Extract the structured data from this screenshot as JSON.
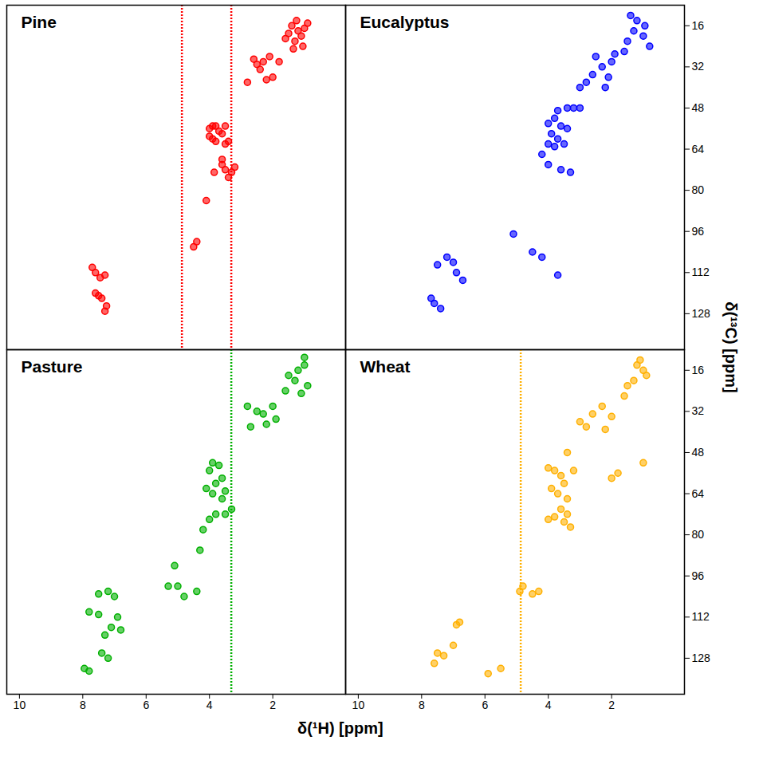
{
  "chart_data": {
    "type": "scatter",
    "xlabel": "δ(¹H) [ppm]",
    "ylabel": "δ(¹³C) [ppm]",
    "xlim": [
      10.4,
      -0.3
    ],
    "xticks": [
      10,
      8,
      6,
      4,
      2
    ],
    "ylim": [
      8,
      142
    ],
    "yticks": [
      16,
      32,
      48,
      64,
      80,
      96,
      112,
      128
    ],
    "panels": [
      {
        "title": "Pine",
        "color": "#ff0000",
        "tick_labels": false,
        "ridges": [
          4.87,
          3.31
        ],
        "x": [
          1.25,
          1.2,
          1.1,
          1.3,
          1.5,
          0.9,
          1.05,
          1.35,
          1.6,
          1.0,
          1.4,
          2.1,
          2.3,
          2.4,
          2.5,
          2.6,
          2.0,
          2.2,
          2.8,
          1.8,
          3.9,
          4.0,
          3.8,
          3.7,
          4.0,
          3.9,
          3.8,
          3.6,
          3.5,
          3.5,
          3.4,
          3.6,
          3.5,
          3.3,
          3.4,
          3.2,
          3.6,
          3.85,
          4.1,
          4.4,
          4.5,
          7.7,
          7.6,
          7.45,
          7.3,
          7.6,
          7.5,
          7.4,
          7.3,
          7.25
        ],
        "values": [
          14,
          18,
          20,
          22,
          19,
          15,
          24,
          25,
          21,
          17,
          16,
          28,
          30,
          33,
          31,
          29,
          36,
          37,
          38,
          30,
          55,
          56,
          55,
          57,
          59,
          60,
          61,
          58,
          62,
          55,
          61,
          70,
          72,
          73,
          75,
          71,
          68,
          73,
          84,
          100,
          102,
          110,
          112,
          114,
          113,
          120,
          121,
          122,
          127,
          125
        ]
      },
      {
        "title": "Eucalyptus",
        "color": "#0000ff",
        "tick_labels": "y",
        "ridges": [],
        "x": [
          1.3,
          1.2,
          1.5,
          1.0,
          1.6,
          1.4,
          0.8,
          0.95,
          2.0,
          2.3,
          2.6,
          2.8,
          2.1,
          1.9,
          2.5,
          3.0,
          2.2,
          3.7,
          3.4,
          3.2,
          3.0,
          3.8,
          4.0,
          3.6,
          3.4,
          3.9,
          3.7,
          3.5,
          4.0,
          3.8,
          4.2,
          4.0,
          3.6,
          3.3,
          5.1,
          4.5,
          4.2,
          3.7,
          7.2,
          7.0,
          7.5,
          6.9,
          6.7,
          7.7,
          7.6,
          7.4
        ],
        "values": [
          18,
          14,
          22,
          20,
          26,
          12,
          24,
          16,
          30,
          32,
          35,
          38,
          36,
          27,
          28,
          40,
          40,
          49,
          48,
          48,
          48,
          52,
          54,
          55,
          56,
          58,
          60,
          62,
          62,
          63,
          66,
          70,
          72,
          73,
          97,
          104,
          106,
          113,
          106,
          108,
          109,
          112,
          115,
          122,
          124,
          126
        ]
      },
      {
        "title": "Pasture",
        "color": "#00b000",
        "tick_labels": "x",
        "ridges": [
          3.31
        ],
        "x": [
          1.0,
          1.2,
          1.3,
          0.9,
          1.5,
          1.1,
          1.6,
          1.0,
          2.0,
          2.3,
          2.5,
          2.7,
          2.2,
          1.9,
          2.8,
          3.9,
          3.7,
          4.0,
          3.6,
          3.8,
          4.1,
          3.5,
          3.9,
          3.6,
          3.3,
          3.5,
          3.8,
          4.0,
          4.2,
          4.3,
          5.1,
          5.0,
          4.4,
          4.8,
          5.3,
          7.2,
          7.0,
          7.5,
          7.8,
          7.5,
          6.9,
          7.1,
          7.3,
          6.8,
          7.4,
          7.2,
          7.95,
          7.8
        ],
        "values": [
          14,
          16,
          20,
          22,
          18,
          25,
          24,
          11,
          30,
          33,
          32,
          38,
          37,
          35,
          30,
          52,
          53,
          55,
          58,
          60,
          62,
          63,
          64,
          66,
          70,
          72,
          72,
          74,
          78,
          86,
          92,
          100,
          102,
          104,
          100,
          102,
          104,
          103,
          110,
          111,
          112,
          116,
          119,
          117,
          126,
          128,
          132,
          133
        ]
      },
      {
        "title": "Wheat",
        "color": "#ffb000",
        "tick_labels": true,
        "ridges": [
          4.87
        ],
        "x": [
          1.2,
          1.0,
          1.3,
          1.5,
          0.9,
          1.1,
          1.6,
          2.3,
          2.0,
          2.6,
          2.8,
          2.2,
          3.0,
          3.4,
          3.2,
          2.0,
          1.8,
          1.0,
          4.0,
          3.8,
          3.6,
          3.5,
          3.9,
          3.7,
          3.4,
          3.6,
          3.4,
          3.8,
          3.5,
          4.0,
          3.3,
          4.5,
          4.3,
          4.8,
          4.9,
          6.8,
          6.9,
          7.3,
          7.5,
          7.0,
          7.6,
          5.9,
          5.5
        ],
        "values": [
          14,
          16,
          20,
          22,
          18,
          12,
          26,
          30,
          34,
          33,
          38,
          39,
          36,
          48,
          55,
          58,
          56,
          52,
          54,
          55,
          57,
          60,
          62,
          64,
          66,
          70,
          72,
          73,
          75,
          74,
          77,
          103,
          102,
          100,
          102,
          114,
          115,
          127,
          126,
          123,
          130,
          134,
          132
        ]
      }
    ]
  }
}
